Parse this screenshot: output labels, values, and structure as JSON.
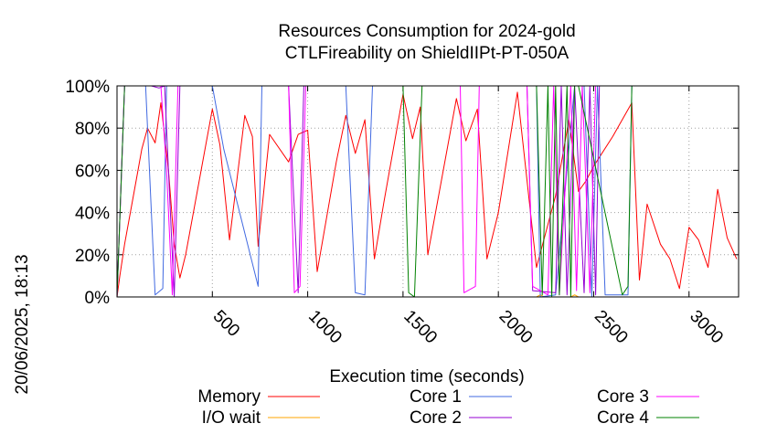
{
  "chart_data": {
    "type": "line",
    "title": "Resources Consumption for 2024-gold",
    "subtitle": "CTLFireability on ShieldIIPt-PT-050A",
    "xlabel": "Execution time (seconds)",
    "ylabel": "",
    "timestamp": "20/06/2025, 18:13",
    "xlim": [
      0,
      3260
    ],
    "ylim": [
      0,
      100
    ],
    "x_ticks": [
      500,
      1000,
      1500,
      2000,
      2500,
      3000
    ],
    "x_tick_labels": [
      "500",
      "1000",
      "1500",
      "2000",
      "2500",
      "3000"
    ],
    "y_ticks": [
      0,
      20,
      40,
      60,
      80,
      100
    ],
    "y_tick_labels": [
      "0%",
      "20%",
      "40%",
      "60%",
      "80%",
      "100%"
    ],
    "grid": true,
    "legend_position": "bottom",
    "series": [
      {
        "name": "Memory",
        "color": "#ff0000",
        "x": [
          0,
          15,
          40,
          70,
          100,
          130,
          160,
          200,
          230,
          270,
          300,
          330,
          360,
          500,
          540,
          590,
          670,
          710,
          740,
          800,
          900,
          950,
          1000,
          1050,
          1150,
          1200,
          1250,
          1300,
          1350,
          1400,
          1500,
          1550,
          1590,
          1630,
          1780,
          1830,
          1890,
          1940,
          2000,
          2100,
          2200,
          2300,
          2370,
          2420,
          2460,
          2500,
          2600,
          2700,
          2740,
          2780,
          2850,
          2900,
          2950,
          3000,
          3050,
          3100,
          3150,
          3200,
          3250
        ],
        "y": [
          0,
          10,
          25,
          40,
          55,
          70,
          80,
          73,
          92,
          60,
          25,
          9,
          20,
          89,
          72,
          27,
          86,
          76,
          24,
          77,
          64,
          77,
          79,
          12,
          64,
          86,
          68,
          84,
          18,
          45,
          96,
          75,
          90,
          20,
          94,
          74,
          89,
          18,
          40,
          97,
          14,
          48,
          84,
          50,
          55,
          62,
          76,
          92,
          8,
          44,
          25,
          18,
          4,
          33,
          27,
          14,
          51,
          28,
          18
        ]
      },
      {
        "name": "I/O wait",
        "color": "#ffa500",
        "x": [
          0,
          1000,
          2000,
          2200,
          2220,
          2240,
          2380,
          2400,
          2420,
          3260
        ],
        "y": [
          0,
          0,
          0,
          0,
          1,
          0,
          0,
          1,
          0,
          0
        ]
      },
      {
        "name": "Core 1",
        "color": "#4169e1",
        "x": [
          0,
          40,
          150,
          200,
          240,
          260,
          500,
          560,
          740,
          760,
          1000,
          1050,
          1200,
          1250,
          1300,
          1340,
          2200,
          2220,
          2300,
          2400,
          2450,
          2490,
          2520,
          2560,
          2680,
          2700,
          3260
        ],
        "y": [
          0,
          100,
          100,
          1,
          4,
          100,
          100,
          70,
          5,
          100,
          100,
          100,
          100,
          2,
          1,
          100,
          100,
          0,
          1,
          100,
          100,
          0,
          100,
          1,
          1,
          100,
          100
        ]
      },
      {
        "name": "Core 2",
        "color": "#9400d3",
        "x": [
          0,
          40,
          180,
          220,
          250,
          300,
          330,
          900,
          950,
          980,
          1010,
          2150,
          2180,
          2300,
          2330,
          2360,
          2400,
          2450,
          2480,
          2510,
          2530,
          2700,
          2720,
          3260
        ],
        "y": [
          0,
          100,
          100,
          99,
          100,
          0,
          100,
          100,
          2,
          100,
          100,
          100,
          3,
          2,
          100,
          1,
          100,
          2,
          100,
          1,
          100,
          100,
          100,
          100
        ]
      },
      {
        "name": "Core 3",
        "color": "#ff00ff",
        "x": [
          0,
          40,
          230,
          260,
          290,
          320,
          900,
          930,
          960,
          990,
          1020,
          1800,
          1820,
          1880,
          1900,
          2150,
          2180,
          2260,
          2290,
          2320,
          2380,
          2410,
          2440,
          2480,
          2510,
          2700,
          2720,
          3260
        ],
        "y": [
          0,
          100,
          100,
          60,
          1,
          100,
          100,
          2,
          5,
          100,
          100,
          100,
          2,
          5,
          100,
          100,
          5,
          1,
          100,
          1,
          100,
          3,
          100,
          2,
          100,
          100,
          100,
          100
        ]
      },
      {
        "name": "Core 4",
        "color": "#008000",
        "x": [
          0,
          40,
          1500,
          1530,
          1560,
          1600,
          2200,
          2230,
          2260,
          2280,
          2300,
          2320,
          2360,
          2380,
          2400,
          2420,
          2650,
          2680,
          2700,
          3260
        ],
        "y": [
          0,
          100,
          100,
          2,
          0,
          100,
          100,
          1,
          100,
          0,
          100,
          1,
          100,
          0,
          100,
          100,
          1,
          5,
          100,
          100
        ]
      }
    ]
  }
}
